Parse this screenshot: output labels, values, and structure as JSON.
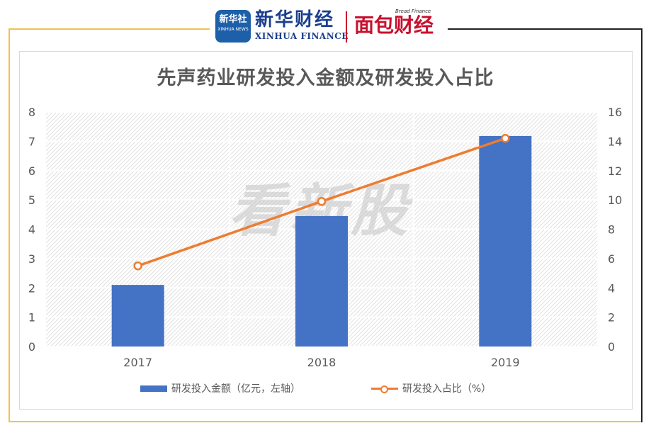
{
  "header": {
    "xinhua_badge_cn": "新华社",
    "xinhua_badge_en": "XINHUA NEWS",
    "xinhua_finance_cn": "新华财经",
    "xinhua_finance_en": "XINHUA FINANCE",
    "bread_finance_en": "Bread Finance",
    "bread_finance_cn": "面包财经"
  },
  "watermark": "看新股",
  "chart_data": {
    "type": "bar",
    "title": "先声药业研发投入金额及研发投入占比",
    "categories": [
      "2017",
      "2018",
      "2019"
    ],
    "series": [
      {
        "name": "研发投入金额（亿元，左轴）",
        "type": "bar",
        "axis": "left",
        "values": [
          2.1,
          4.45,
          7.18
        ],
        "color": "#4472c4"
      },
      {
        "name": "研发投入占比（%）",
        "type": "line",
        "axis": "right",
        "values": [
          5.5,
          9.9,
          14.2
        ],
        "color": "#ed7d31"
      }
    ],
    "y_left": {
      "min": 0,
      "max": 8,
      "step": 1,
      "ticks": [
        "0",
        "1",
        "2",
        "3",
        "4",
        "5",
        "6",
        "7",
        "8"
      ]
    },
    "y_right": {
      "min": 0,
      "max": 16,
      "step": 2,
      "ticks": [
        "0",
        "2",
        "4",
        "6",
        "8",
        "10",
        "12",
        "14",
        "16"
      ]
    },
    "grid": true,
    "legend_position": "bottom"
  }
}
